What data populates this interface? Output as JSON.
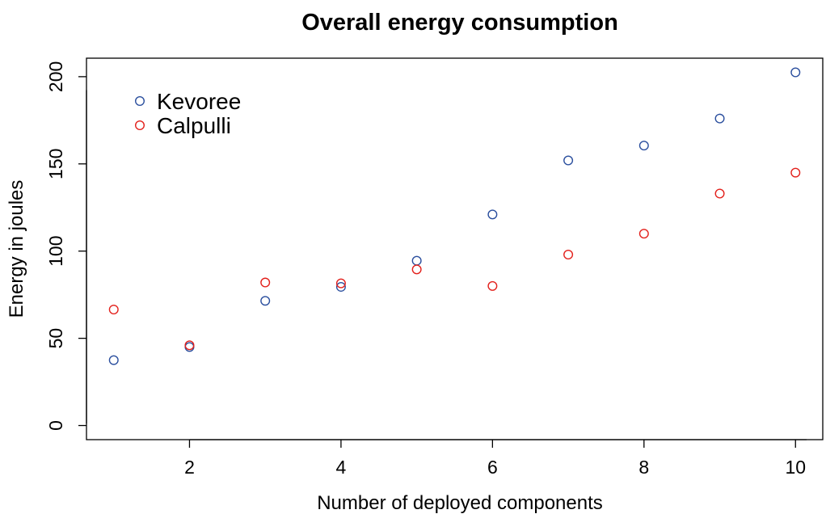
{
  "chart_data": {
    "type": "scatter",
    "title": "Overall energy consumption",
    "xlabel": "Number of deployed components",
    "ylabel": "Energy in joules",
    "xlim": [
      0.64,
      10.36
    ],
    "ylim": [
      -8.1,
      210.6
    ],
    "x_ticks": [
      2,
      4,
      6,
      8,
      10
    ],
    "y_ticks": [
      0,
      50,
      100,
      150,
      200
    ],
    "grid": false,
    "legend_position": "top-left",
    "series": [
      {
        "name": "Kevoree",
        "color": "#2b4f9e",
        "marker": "open-circle",
        "x": [
          1,
          2,
          3,
          4,
          5,
          6,
          7,
          8,
          9,
          10
        ],
        "y": [
          37.5,
          45,
          71.5,
          79.5,
          94.5,
          121,
          152,
          160.5,
          176,
          202.5
        ]
      },
      {
        "name": "Calpulli",
        "color": "#e3211c",
        "marker": "open-circle",
        "x": [
          1,
          2,
          3,
          4,
          5,
          6,
          7,
          8,
          9,
          10
        ],
        "y": [
          66.5,
          46,
          82,
          81.5,
          89.5,
          80,
          98,
          110,
          133,
          145
        ]
      }
    ]
  }
}
